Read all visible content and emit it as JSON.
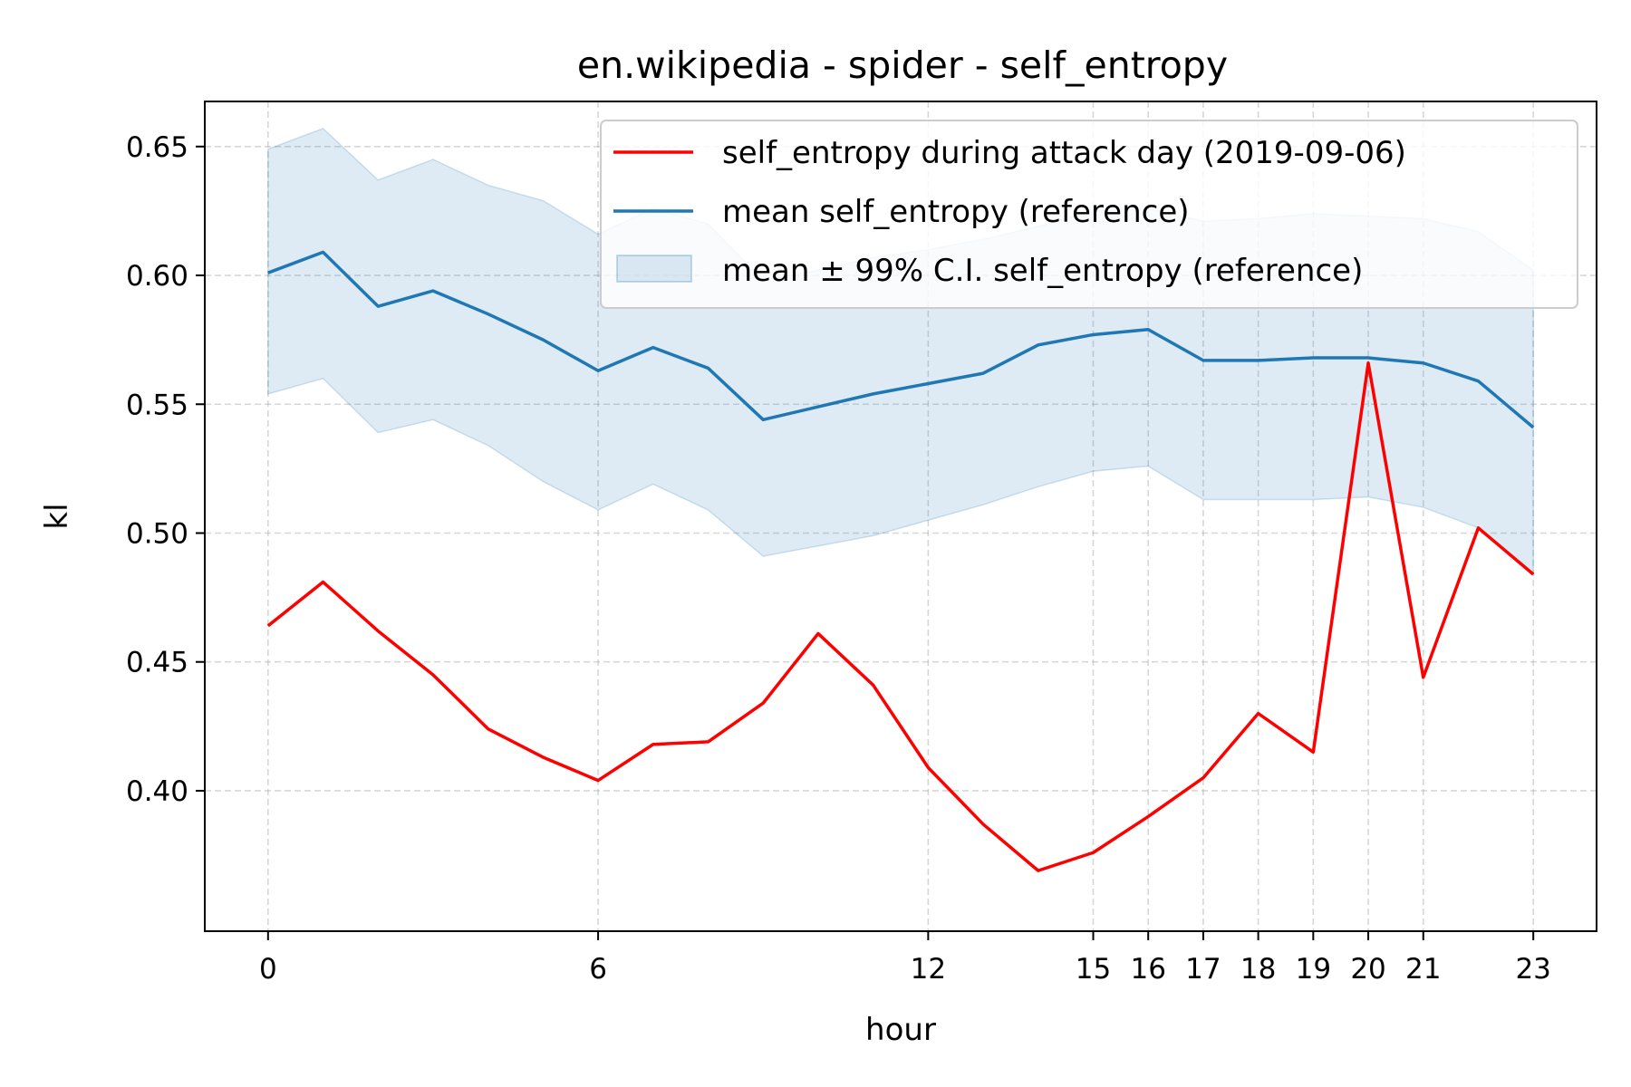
{
  "chart_data": {
    "type": "line",
    "title": "en.wikipedia - spider - self_entropy",
    "xlabel": "hour",
    "ylabel": "kl",
    "xlim": [
      -1.15,
      24.15
    ],
    "ylim": [
      0.3455,
      0.6675
    ],
    "x_ticks": [
      0,
      6,
      12,
      15,
      16,
      17,
      18,
      19,
      20,
      21,
      23
    ],
    "y_ticks": [
      0.4,
      0.45,
      0.5,
      0.55,
      0.6,
      0.65
    ],
    "y_tick_labels": [
      "0.40",
      "0.45",
      "0.50",
      "0.55",
      "0.60",
      "0.65"
    ],
    "grid": true,
    "legend_position": "upper right",
    "x": [
      0,
      1,
      2,
      3,
      4,
      5,
      6,
      7,
      8,
      9,
      10,
      11,
      12,
      13,
      14,
      15,
      16,
      17,
      18,
      19,
      20,
      21,
      22,
      23
    ],
    "series": [
      {
        "name": "self_entropy during attack day (2019-09-06)",
        "color": "#ff0000",
        "values": [
          0.464,
          0.481,
          0.462,
          0.445,
          0.424,
          0.413,
          0.404,
          0.418,
          0.419,
          0.434,
          0.461,
          0.441,
          0.409,
          0.387,
          0.369,
          0.376,
          0.39,
          0.405,
          0.43,
          0.415,
          0.566,
          0.444,
          0.502,
          0.484
        ]
      },
      {
        "name": "mean self_entropy (reference)",
        "color": "#1f77b4",
        "values": [
          0.601,
          0.609,
          0.588,
          0.594,
          0.585,
          0.575,
          0.563,
          0.572,
          0.564,
          0.544,
          0.549,
          0.554,
          0.558,
          0.562,
          0.573,
          0.577,
          0.579,
          0.567,
          0.567,
          0.568,
          0.568,
          0.566,
          0.559,
          0.541
        ]
      }
    ],
    "band": {
      "name": "mean ± 99% C.I. self_entropy (reference)",
      "color": "#1f77b4",
      "upper": [
        0.649,
        0.657,
        0.637,
        0.645,
        0.635,
        0.629,
        0.616,
        0.626,
        0.62,
        0.598,
        0.602,
        0.607,
        0.61,
        0.614,
        0.619,
        0.625,
        0.626,
        0.621,
        0.622,
        0.624,
        0.623,
        0.622,
        0.617,
        0.602
      ],
      "lower": [
        0.554,
        0.56,
        0.539,
        0.544,
        0.534,
        0.52,
        0.509,
        0.519,
        0.509,
        0.491,
        0.495,
        0.499,
        0.505,
        0.511,
        0.518,
        0.524,
        0.526,
        0.513,
        0.513,
        0.513,
        0.514,
        0.51,
        0.502,
        0.484
      ]
    }
  }
}
